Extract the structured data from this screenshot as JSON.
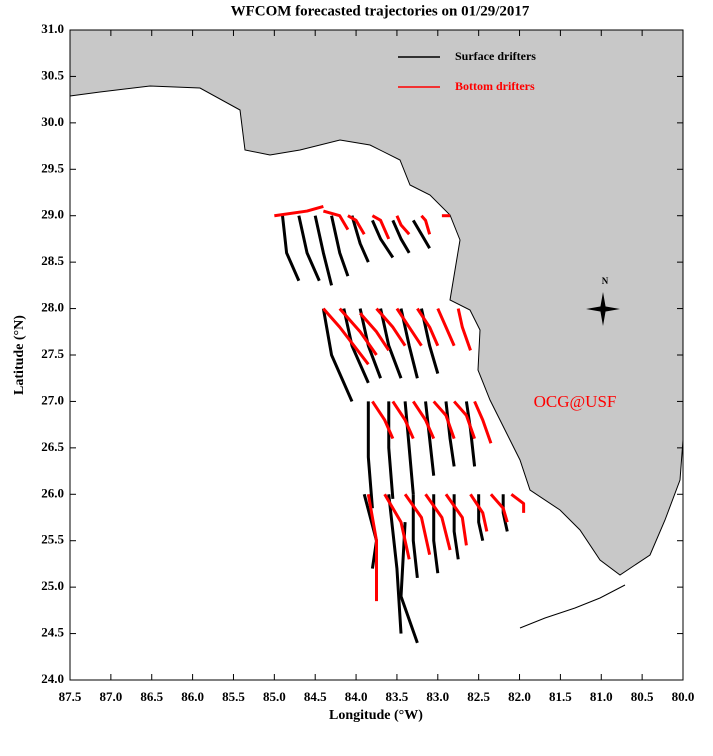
{
  "chart_data": {
    "type": "trajectory",
    "title": "WFCOM forecasted trajectories on 01/29/2017",
    "x_label": "Longitude (°W)",
    "y_label": "Latitude (°N)",
    "annotation": "OCG@USF",
    "compass_label": "N",
    "xlim": [
      87.5,
      80.0
    ],
    "ylim": [
      24.0,
      31.0
    ],
    "xticks": [
      87.5,
      {
        "value": 87,
        "label": "87.0"
      },
      86.5,
      {
        "value": 86,
        "label": "86.0"
      },
      85.5,
      {
        "value": 85,
        "label": "85.0"
      },
      84.5,
      {
        "value": 84,
        "label": "84.0"
      },
      83.5,
      {
        "value": 83,
        "label": "83.0"
      },
      82.5,
      {
        "value": 82,
        "label": "82.0"
      },
      81.5,
      {
        "value": 81,
        "label": "81.0"
      },
      80.5,
      {
        "value": 80,
        "label": "80.0"
      }
    ],
    "yticks": [
      {
        "value": 24,
        "label": "24.0"
      },
      24.5,
      {
        "value": 25,
        "label": "25.0"
      },
      25.5,
      {
        "value": 26,
        "label": "26.0"
      },
      26.5,
      {
        "value": 27,
        "label": "27.0"
      },
      27.5,
      {
        "value": 28,
        "label": "28.0"
      },
      28.5,
      {
        "value": 29,
        "label": "29.0"
      },
      29.5,
      {
        "value": 30,
        "label": "30.0"
      },
      30.5,
      {
        "value": 31,
        "label": "31.0"
      }
    ],
    "series": [
      {
        "name": "Surface drifters",
        "color": "#000000",
        "tracks": [
          {
            "x": [
              84.9,
              84.85,
              84.7
            ],
            "y": [
              29.0,
              28.6,
              28.3
            ]
          },
          {
            "x": [
              84.7,
              84.6,
              84.45
            ],
            "y": [
              29.0,
              28.6,
              28.3
            ]
          },
          {
            "x": [
              84.5,
              84.4,
              84.3
            ],
            "y": [
              29.0,
              28.6,
              28.25
            ]
          },
          {
            "x": [
              84.3,
              84.2,
              84.1
            ],
            "y": [
              29.0,
              28.6,
              28.35
            ]
          },
          {
            "x": [
              84.05,
              83.95,
              83.85
            ],
            "y": [
              29.0,
              28.7,
              28.5
            ]
          },
          {
            "x": [
              83.8,
              83.7,
              83.55
            ],
            "y": [
              28.95,
              28.75,
              28.55
            ]
          },
          {
            "x": [
              83.55,
              83.45,
              83.35
            ],
            "y": [
              28.95,
              28.75,
              28.6
            ]
          },
          {
            "x": [
              83.3,
              83.2,
              83.1
            ],
            "y": [
              28.95,
              28.8,
              28.65
            ]
          },
          {
            "x": [
              84.4,
              84.3,
              84.05
            ],
            "y": [
              28.0,
              27.5,
              27.0
            ]
          },
          {
            "x": [
              84.15,
              84.05,
              83.85
            ],
            "y": [
              28.0,
              27.6,
              27.2
            ]
          },
          {
            "x": [
              83.95,
              83.85,
              83.7
            ],
            "y": [
              28.0,
              27.6,
              27.25
            ]
          },
          {
            "x": [
              83.7,
              83.6,
              83.45
            ],
            "y": [
              28.0,
              27.6,
              27.25
            ]
          },
          {
            "x": [
              83.45,
              83.35,
              83.25
            ],
            "y": [
              28.0,
              27.6,
              27.25
            ]
          },
          {
            "x": [
              83.2,
              83.1,
              83.0
            ],
            "y": [
              28.0,
              27.6,
              27.3
            ]
          },
          {
            "x": [
              83.85,
              83.85,
              83.8
            ],
            "y": [
              27.0,
              26.4,
              25.85
            ]
          },
          {
            "x": [
              83.6,
              83.6,
              83.55
            ],
            "y": [
              27.0,
              26.5,
              25.95
            ]
          },
          {
            "x": [
              83.4,
              83.35,
              83.3
            ],
            "y": [
              27.0,
              26.5,
              26.0
            ]
          },
          {
            "x": [
              83.15,
              83.1,
              83.05
            ],
            "y": [
              27.0,
              26.6,
              26.2
            ]
          },
          {
            "x": [
              82.9,
              82.85,
              82.8
            ],
            "y": [
              27.0,
              26.6,
              26.3
            ]
          },
          {
            "x": [
              82.65,
              82.6,
              82.55
            ],
            "y": [
              27.0,
              26.7,
              26.3
            ]
          },
          {
            "x": [
              83.9,
              83.75,
              83.8
            ],
            "y": [
              26.0,
              25.5,
              25.2
            ]
          },
          {
            "x": [
              83.6,
              83.5,
              83.45
            ],
            "y": [
              26.0,
              25.2,
              24.5
            ]
          },
          {
            "x": [
              83.4,
              83.45,
              83.25
            ],
            "y": [
              25.7,
              24.9,
              24.4
            ]
          },
          {
            "x": [
              83.3,
              83.3,
              83.25
            ],
            "y": [
              26.0,
              25.5,
              25.1
            ]
          },
          {
            "x": [
              83.05,
              83.05,
              83.0
            ],
            "y": [
              26.0,
              25.5,
              25.15
            ]
          },
          {
            "x": [
              82.8,
              82.8,
              82.75
            ],
            "y": [
              26.0,
              25.6,
              25.3
            ]
          },
          {
            "x": [
              82.5,
              82.5,
              82.45
            ],
            "y": [
              26.0,
              25.7,
              25.5
            ]
          },
          {
            "x": [
              82.2,
              82.2,
              82.15
            ],
            "y": [
              26.0,
              25.8,
              25.6
            ]
          }
        ]
      },
      {
        "name": "Bottom drifters",
        "color": "#ff0000",
        "tracks": [
          {
            "x": [
              85.0,
              84.6,
              84.4
            ],
            "y": [
              29.0,
              29.05,
              29.1
            ]
          },
          {
            "x": [
              84.4,
              84.2,
              84.1
            ],
            "y": [
              29.05,
              29.0,
              28.85
            ]
          },
          {
            "x": [
              84.1,
              84.0,
              83.9
            ],
            "y": [
              29.0,
              28.95,
              28.8
            ]
          },
          {
            "x": [
              83.8,
              83.7,
              83.6
            ],
            "y": [
              29.0,
              28.95,
              28.75
            ]
          },
          {
            "x": [
              83.5,
              83.45,
              83.35
            ],
            "y": [
              29.0,
              28.9,
              28.8
            ]
          },
          {
            "x": [
              83.2,
              83.15,
              83.1
            ],
            "y": [
              29.0,
              28.95,
              28.8
            ]
          },
          {
            "x": [
              82.95,
              82.9,
              82.85
            ],
            "y": [
              29.0,
              29.0,
              29.0
            ]
          },
          {
            "x": [
              84.4,
              84.2,
              83.85
            ],
            "y": [
              28.0,
              27.8,
              27.4
            ]
          },
          {
            "x": [
              84.2,
              83.95,
              83.75
            ],
            "y": [
              28.0,
              27.75,
              27.5
            ]
          },
          {
            "x": [
              83.95,
              83.75,
              83.6
            ],
            "y": [
              27.95,
              27.75,
              27.55
            ]
          },
          {
            "x": [
              83.75,
              83.55,
              83.4
            ],
            "y": [
              28.0,
              27.8,
              27.6
            ]
          },
          {
            "x": [
              83.5,
              83.35,
              83.2
            ],
            "y": [
              28.0,
              27.8,
              27.6
            ]
          },
          {
            "x": [
              83.25,
              83.1,
              83.0
            ],
            "y": [
              28.0,
              27.8,
              27.6
            ]
          },
          {
            "x": [
              83.0,
              82.9,
              82.8
            ],
            "y": [
              28.0,
              27.8,
              27.6
            ]
          },
          {
            "x": [
              82.75,
              82.7,
              82.6
            ],
            "y": [
              28.0,
              27.8,
              27.55
            ]
          },
          {
            "x": [
              83.8,
              83.65,
              83.55
            ],
            "y": [
              27.0,
              26.8,
              26.6
            ]
          },
          {
            "x": [
              83.55,
              83.4,
              83.3
            ],
            "y": [
              27.0,
              26.8,
              26.6
            ]
          },
          {
            "x": [
              83.3,
              83.15,
              83.05
            ],
            "y": [
              27.0,
              26.8,
              26.6
            ]
          },
          {
            "x": [
              83.05,
              82.9,
              82.8
            ],
            "y": [
              27.0,
              26.85,
              26.6
            ]
          },
          {
            "x": [
              82.8,
              82.65,
              82.55
            ],
            "y": [
              27.0,
              26.85,
              26.6
            ]
          },
          {
            "x": [
              82.55,
              82.45,
              82.35
            ],
            "y": [
              27.0,
              26.8,
              26.55
            ]
          },
          {
            "x": [
              83.85,
              83.75,
              83.75
            ],
            "y": [
              26.0,
              25.5,
              24.85
            ]
          },
          {
            "x": [
              83.65,
              83.45,
              83.35
            ],
            "y": [
              26.0,
              25.7,
              25.3
            ]
          },
          {
            "x": [
              83.4,
              83.2,
              83.1
            ],
            "y": [
              26.0,
              25.75,
              25.35
            ]
          },
          {
            "x": [
              83.15,
              82.95,
              82.85
            ],
            "y": [
              26.0,
              25.75,
              25.4
            ]
          },
          {
            "x": [
              82.9,
              82.7,
              82.65
            ],
            "y": [
              26.0,
              25.75,
              25.45
            ]
          },
          {
            "x": [
              82.6,
              82.45,
              82.4
            ],
            "y": [
              26.0,
              25.8,
              25.6
            ]
          },
          {
            "x": [
              82.35,
              82.2,
              82.15
            ],
            "y": [
              26.0,
              25.85,
              25.7
            ]
          },
          {
            "x": [
              82.1,
              81.95,
              81.95
            ],
            "y": [
              26.0,
              25.9,
              25.8
            ]
          }
        ]
      }
    ]
  }
}
